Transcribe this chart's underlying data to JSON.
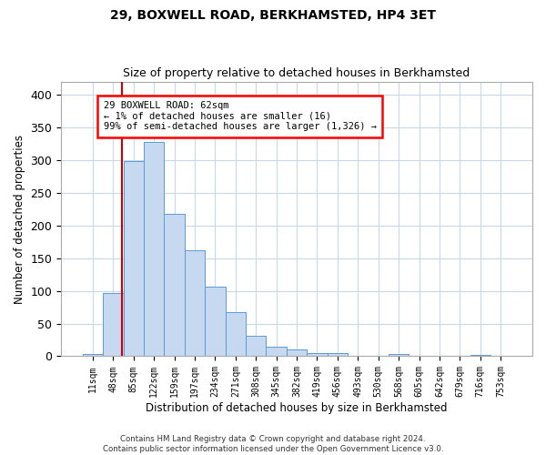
{
  "title1": "29, BOXWELL ROAD, BERKHAMSTED, HP4 3ET",
  "title2": "Size of property relative to detached houses in Berkhamsted",
  "xlabel": "Distribution of detached houses by size in Berkhamsted",
  "ylabel": "Number of detached properties",
  "bar_labels": [
    "11sqm",
    "48sqm",
    "85sqm",
    "122sqm",
    "159sqm",
    "197sqm",
    "234sqm",
    "271sqm",
    "308sqm",
    "345sqm",
    "382sqm",
    "419sqm",
    "456sqm",
    "493sqm",
    "530sqm",
    "568sqm",
    "605sqm",
    "642sqm",
    "679sqm",
    "716sqm",
    "753sqm"
  ],
  "bar_values": [
    3,
    97,
    298,
    328,
    217,
    162,
    106,
    68,
    31,
    14,
    11,
    5,
    5,
    0,
    0,
    3,
    0,
    0,
    0,
    2,
    1
  ],
  "bar_color": "#c6d9f0",
  "bar_edge_color": "#5b9bd5",
  "vline_x": 1.41,
  "vline_color": "#cc0000",
  "annotation_text": "29 BOXWELL ROAD: 62sqm\n← 1% of detached houses are smaller (16)\n99% of semi-detached houses are larger (1,326) →",
  "ylim": [
    0,
    420
  ],
  "yticks": [
    0,
    50,
    100,
    150,
    200,
    250,
    300,
    350,
    400
  ],
  "footer1": "Contains HM Land Registry data © Crown copyright and database right 2024.",
  "footer2": "Contains public sector information licensed under the Open Government Licence v3.0.",
  "bg_color": "#ffffff",
  "grid_color": "#c8d8e8"
}
